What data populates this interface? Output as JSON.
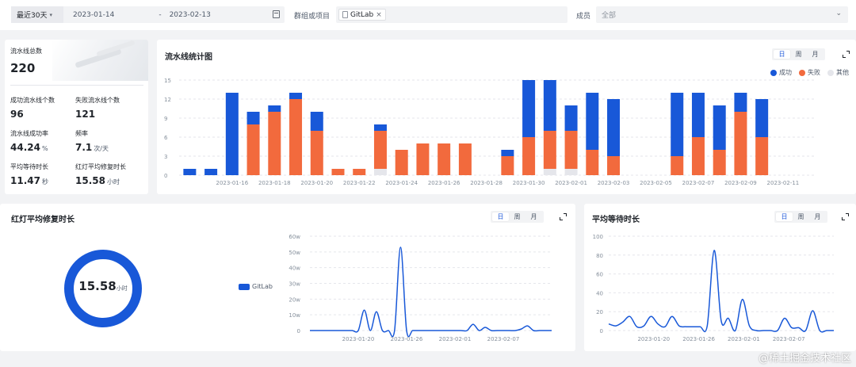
{
  "filters": {
    "range_label": "最近30天",
    "start_date": "2023-01-14",
    "date_sep": "-",
    "end_date": "2023-02-13",
    "project_label": "群组或项目",
    "project_tag": "GitLab",
    "member_label": "成员",
    "member_value": "全部"
  },
  "stats": {
    "total_label": "流水线总数",
    "total_value": "220",
    "success_label": "成功流水线个数",
    "success_value": "96",
    "fail_label": "失败流水线个数",
    "fail_value": "121",
    "rate_label": "流水线成功率",
    "rate_value": "44.24",
    "rate_unit": "%",
    "freq_label": "频率",
    "freq_value": "7.1",
    "freq_unit": "次/天",
    "wait_label": "平均等待时长",
    "wait_value": "11.47",
    "wait_unit": "秒",
    "repair_label": "红灯平均修复时长",
    "repair_value": "15.58",
    "repair_unit": "小时"
  },
  "bar_card": {
    "title": "流水线统计图",
    "seg": [
      "日",
      "周",
      "月"
    ],
    "legend": [
      {
        "label": "成功",
        "color": "#1858d8"
      },
      {
        "label": "失败",
        "color": "#f26a3d"
      },
      {
        "label": "其他",
        "color": "#e5e6eb"
      }
    ]
  },
  "repair_card": {
    "title": "红灯平均修复时长",
    "seg": [
      "日",
      "周",
      "月"
    ],
    "donut_value": "15.58",
    "donut_unit": "小时",
    "legend_label": "GitLab",
    "color": "#1858d8"
  },
  "wait_card": {
    "title": "平均等待时长",
    "seg": [
      "日",
      "周",
      "月"
    ],
    "color": "#1858d8"
  },
  "chart_data": [
    {
      "type": "bar",
      "stacked": true,
      "title": "流水线统计图",
      "categories": [
        "2023-01-14",
        "2023-01-15",
        "2023-01-16",
        "2023-01-17",
        "2023-01-18",
        "2023-01-19",
        "2023-01-20",
        "2023-01-21",
        "2023-01-22",
        "2023-01-23",
        "2023-01-24",
        "2023-01-25",
        "2023-01-26",
        "2023-01-27",
        "2023-01-28",
        "2023-01-29",
        "2023-01-30",
        "2023-01-31",
        "2023-02-01",
        "2023-02-02",
        "2023-02-03",
        "2023-02-04",
        "2023-02-05",
        "2023-02-06",
        "2023-02-07",
        "2023-02-08",
        "2023-02-09",
        "2023-02-10",
        "2023-02-11",
        "2023-02-12"
      ],
      "tick_labels": [
        "2023-01-16",
        "2023-01-18",
        "2023-01-20",
        "2023-01-22",
        "2023-01-24",
        "2023-01-26",
        "2023-01-28",
        "2023-01-30",
        "2023-02-01",
        "2023-02-03",
        "2023-02-05",
        "2023-02-07",
        "2023-02-09",
        "2023-02-11"
      ],
      "series": [
        {
          "name": "其他",
          "values": [
            0,
            0,
            0,
            0,
            0,
            0,
            0,
            0,
            0,
            1,
            0,
            0,
            0,
            0,
            0,
            0,
            0,
            1,
            1,
            0,
            0,
            0,
            0,
            0,
            0,
            0,
            0,
            0,
            0,
            0
          ]
        },
        {
          "name": "失败",
          "values": [
            0,
            0,
            0,
            8,
            10,
            12,
            7,
            1,
            1,
            6,
            4,
            5,
            5,
            5,
            0,
            3,
            6,
            6,
            6,
            4,
            3,
            0,
            0,
            3,
            6,
            4,
            10,
            6,
            0,
            0
          ]
        },
        {
          "name": "成功",
          "values": [
            1,
            1,
            13,
            2,
            1,
            1,
            3,
            0,
            0,
            1,
            0,
            0,
            0,
            0,
            0,
            1,
            9,
            8,
            4,
            9,
            9,
            0,
            0,
            10,
            7,
            7,
            3,
            6,
            0,
            0
          ]
        }
      ],
      "yticks": [
        0,
        3,
        6,
        9,
        12,
        15
      ],
      "ylim": [
        0,
        15
      ],
      "legend_position": "top-right"
    },
    {
      "type": "line",
      "series": [
        {
          "name": "GitLab",
          "values": [
            0,
            0,
            0,
            0,
            0,
            0,
            0,
            0,
            0,
            13,
            0,
            12,
            0,
            0,
            0,
            53,
            0,
            0,
            0,
            0,
            0,
            0,
            0,
            0,
            0,
            0,
            0,
            4,
            0,
            2,
            0,
            0,
            0,
            0,
            0,
            1,
            3,
            0,
            0,
            0,
            0
          ]
        }
      ],
      "x_range": [
        "2023-01-14",
        "2023-02-13"
      ],
      "tick_labels": [
        "2023-01-20",
        "2023-01-26",
        "2023-02-01",
        "2023-02-07"
      ],
      "yticks": [
        "0",
        "10w",
        "20w",
        "30w",
        "40w",
        "50w",
        "60w"
      ],
      "ylim": [
        0,
        60
      ],
      "legend_position": "left"
    },
    {
      "type": "line",
      "series": [
        {
          "name": "平均等待时长",
          "values": [
            7,
            5,
            9,
            15,
            4,
            5,
            15,
            7,
            4,
            15,
            5,
            4,
            4,
            4,
            5,
            85,
            10,
            13,
            0,
            33,
            5,
            0,
            0,
            0,
            0,
            13,
            3,
            3,
            0,
            21,
            0,
            0,
            0
          ]
        }
      ],
      "x_range": [
        "2023-01-14",
        "2023-02-13"
      ],
      "tick_labels": [
        "2023-01-20",
        "2023-01-26",
        "2023-02-01",
        "2023-02-07"
      ],
      "yticks": [
        0,
        20,
        40,
        60,
        80,
        100
      ],
      "ylim": [
        0,
        100
      ]
    }
  ],
  "watermark": "@稀土掘金技术社区"
}
